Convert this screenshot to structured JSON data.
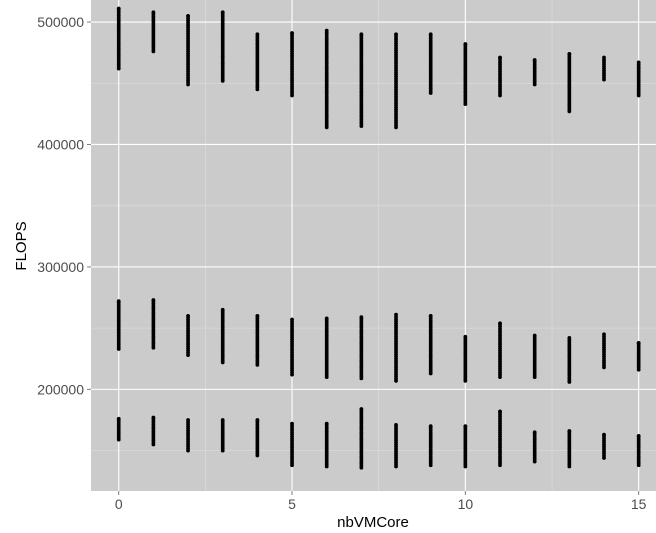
{
  "chart_data": {
    "type": "scatter",
    "title": "",
    "xlabel": "nbVMCore",
    "ylabel": "FLOPS",
    "xlim": [
      -0.8,
      15.5
    ],
    "ylim": [
      117000,
      518000
    ],
    "x_ticks": [
      0,
      5,
      10,
      15
    ],
    "x_tick_labels": [
      "0",
      "5",
      "10",
      "15"
    ],
    "y_ticks": [
      200000,
      300000,
      400000,
      500000
    ],
    "y_tick_labels": [
      "200000",
      "300000",
      "400000",
      "500000"
    ],
    "grid": true,
    "legend": "none",
    "colors": {
      "panel": "#cbcbcb",
      "grid_major": "#ffffff",
      "grid_minor": "#dadada",
      "point": "#000000",
      "tick_text": "#4d4d4d"
    },
    "groups": [
      {
        "name": "",
        "ranges": [
          {
            "x": 0,
            "ymin": 462000,
            "ymax": 511000
          },
          {
            "x": 1,
            "ymin": 476000,
            "ymax": 508000
          },
          {
            "x": 2,
            "ymin": 449000,
            "ymax": 505000
          },
          {
            "x": 3,
            "ymin": 452000,
            "ymax": 508000
          },
          {
            "x": 4,
            "ymin": 445000,
            "ymax": 490000
          },
          {
            "x": 5,
            "ymin": 440000,
            "ymax": 491000
          },
          {
            "x": 6,
            "ymin": 414000,
            "ymax": 493000
          },
          {
            "x": 7,
            "ymin": 415000,
            "ymax": 490000
          },
          {
            "x": 8,
            "ymin": 414000,
            "ymax": 490000
          },
          {
            "x": 9,
            "ymin": 442000,
            "ymax": 490000
          },
          {
            "x": 10,
            "ymin": 433000,
            "ymax": 482000
          },
          {
            "x": 11,
            "ymin": 440000,
            "ymax": 471000
          },
          {
            "x": 12,
            "ymin": 449000,
            "ymax": 469000
          },
          {
            "x": 13,
            "ymin": 427000,
            "ymax": 474000
          },
          {
            "x": 14,
            "ymin": 453000,
            "ymax": 471000
          },
          {
            "x": 15,
            "ymin": 440000,
            "ymax": 467000
          }
        ]
      },
      {
        "name": "",
        "ranges": [
          {
            "x": 0,
            "ymin": 233000,
            "ymax": 272000
          },
          {
            "x": 1,
            "ymin": 234000,
            "ymax": 273000
          },
          {
            "x": 2,
            "ymin": 228000,
            "ymax": 260000
          },
          {
            "x": 3,
            "ymin": 222000,
            "ymax": 265000
          },
          {
            "x": 4,
            "ymin": 220000,
            "ymax": 260000
          },
          {
            "x": 5,
            "ymin": 212000,
            "ymax": 257000
          },
          {
            "x": 6,
            "ymin": 210000,
            "ymax": 258000
          },
          {
            "x": 7,
            "ymin": 209000,
            "ymax": 259000
          },
          {
            "x": 8,
            "ymin": 207000,
            "ymax": 261000
          },
          {
            "x": 9,
            "ymin": 213000,
            "ymax": 260000
          },
          {
            "x": 10,
            "ymin": 207000,
            "ymax": 243000
          },
          {
            "x": 11,
            "ymin": 210000,
            "ymax": 254000
          },
          {
            "x": 12,
            "ymin": 210000,
            "ymax": 244000
          },
          {
            "x": 13,
            "ymin": 206000,
            "ymax": 242000
          },
          {
            "x": 14,
            "ymin": 218000,
            "ymax": 245000
          },
          {
            "x": 15,
            "ymin": 216000,
            "ymax": 238000
          }
        ]
      },
      {
        "name": "",
        "ranges": [
          {
            "x": 0,
            "ymin": 159000,
            "ymax": 176000
          },
          {
            "x": 1,
            "ymin": 155000,
            "ymax": 177000
          },
          {
            "x": 2,
            "ymin": 150000,
            "ymax": 175000
          },
          {
            "x": 3,
            "ymin": 150000,
            "ymax": 175000
          },
          {
            "x": 4,
            "ymin": 146000,
            "ymax": 175000
          },
          {
            "x": 5,
            "ymin": 138000,
            "ymax": 172000
          },
          {
            "x": 6,
            "ymin": 137000,
            "ymax": 172000
          },
          {
            "x": 7,
            "ymin": 136000,
            "ymax": 184000
          },
          {
            "x": 8,
            "ymin": 137000,
            "ymax": 171000
          },
          {
            "x": 9,
            "ymin": 138000,
            "ymax": 170000
          },
          {
            "x": 10,
            "ymin": 137000,
            "ymax": 170000
          },
          {
            "x": 11,
            "ymin": 138000,
            "ymax": 182000
          },
          {
            "x": 12,
            "ymin": 141000,
            "ymax": 165000
          },
          {
            "x": 13,
            "ymin": 137000,
            "ymax": 166000
          },
          {
            "x": 14,
            "ymin": 144000,
            "ymax": 163000
          },
          {
            "x": 15,
            "ymin": 138000,
            "ymax": 162000
          }
        ]
      }
    ]
  }
}
